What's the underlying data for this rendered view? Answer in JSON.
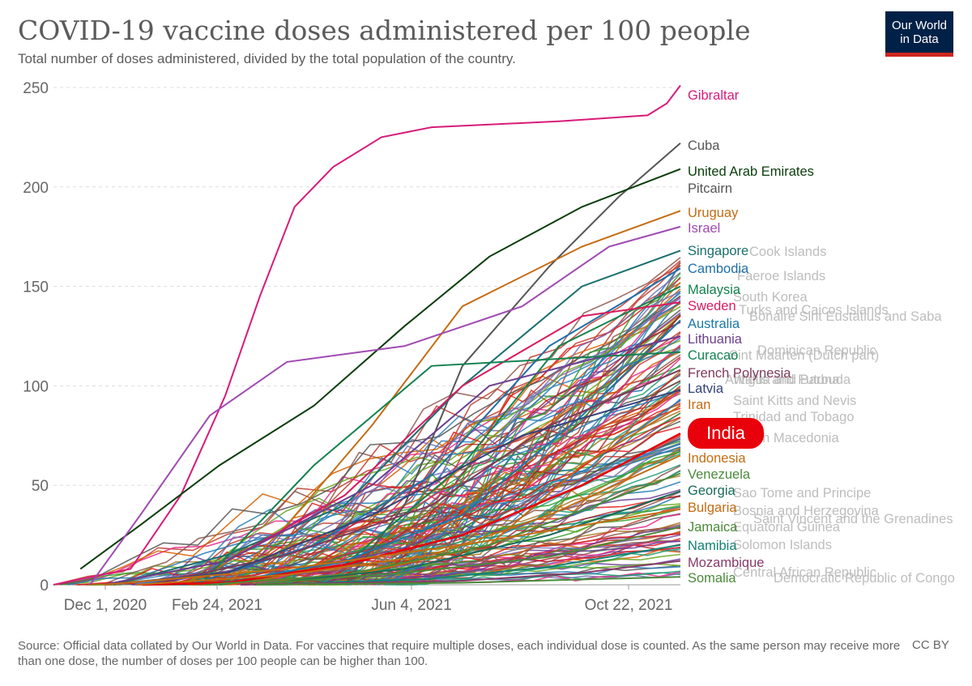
{
  "header": {
    "title": "COVID-19 vaccine doses administered per 100 people",
    "subtitle": "Total number of doses administered, divided by the total population of the country.",
    "logo_line1": "Our World",
    "logo_line2": "in Data"
  },
  "footer": {
    "source": "Source: Official data collated by Our World in Data. For vaccines that require multiple doses, each individual dose is counted. As the same person may receive more than one dose, the number of doses per 100 people can be higher than 100.",
    "license": "CC BY"
  },
  "highlight": {
    "country": "India",
    "color": "#e8000b"
  },
  "chart_data": {
    "type": "line",
    "title": "COVID-19 vaccine doses administered per 100 people",
    "subtitle": "Total number of doses administered, divided by the total population of the country.",
    "xlabel": "",
    "ylabel": "",
    "x_ticks": [
      "Dec 1, 2020",
      "Feb 24, 2021",
      "Jun 4, 2021",
      "Oct 22, 2021"
    ],
    "y_ticks": [
      0,
      50,
      100,
      150,
      200,
      250
    ],
    "ylim": [
      0,
      250
    ],
    "xlim": [
      "2020-12-01",
      "2021-10-22"
    ],
    "grid": "horizontal dashed",
    "legend": "labels at line ends, right",
    "series": [
      {
        "name": "Gibraltar",
        "color": "#d81b7a",
        "points": [
          [
            "2020-12-01",
            0
          ],
          [
            "2021-01-10",
            8
          ],
          [
            "2021-02-05",
            45
          ],
          [
            "2021-02-28",
            95
          ],
          [
            "2021-03-18",
            145
          ],
          [
            "2021-04-05",
            190
          ],
          [
            "2021-04-25",
            210
          ],
          [
            "2021-05-20",
            225
          ],
          [
            "2021-06-15",
            230
          ],
          [
            "2021-08-20",
            233
          ],
          [
            "2021-10-05",
            236
          ],
          [
            "2021-10-15",
            242
          ],
          [
            "2021-10-22",
            251
          ]
        ]
      },
      {
        "name": "Cuba",
        "color": "#555555",
        "points": [
          [
            "2021-05-01",
            0
          ],
          [
            "2021-06-01",
            40
          ],
          [
            "2021-07-01",
            110
          ],
          [
            "2021-08-15",
            160
          ],
          [
            "2021-09-20",
            195
          ],
          [
            "2021-10-22",
            222
          ]
        ]
      },
      {
        "name": "United Arab Emirates",
        "color": "#0a3d0a",
        "points": [
          [
            "2020-12-15",
            8
          ],
          [
            "2021-01-15",
            30
          ],
          [
            "2021-02-25",
            60
          ],
          [
            "2021-04-15",
            90
          ],
          [
            "2021-06-01",
            130
          ],
          [
            "2021-07-15",
            165
          ],
          [
            "2021-09-01",
            190
          ],
          [
            "2021-10-22",
            209
          ]
        ]
      },
      {
        "name": "Pitcairn",
        "color": "#555555",
        "points": []
      },
      {
        "name": "Uruguay",
        "color": "#c46c12",
        "points": [
          [
            "2021-03-01",
            0
          ],
          [
            "2021-04-01",
            30
          ],
          [
            "2021-05-15",
            80
          ],
          [
            "2021-07-01",
            140
          ],
          [
            "2021-09-01",
            170
          ],
          [
            "2021-10-22",
            188
          ]
        ]
      },
      {
        "name": "Israel",
        "color": "#a04ab2",
        "points": [
          [
            "2020-12-20",
            0
          ],
          [
            "2021-01-15",
            35
          ],
          [
            "2021-02-20",
            85
          ],
          [
            "2021-04-01",
            112
          ],
          [
            "2021-06-01",
            120
          ],
          [
            "2021-08-01",
            140
          ],
          [
            "2021-09-15",
            170
          ],
          [
            "2021-10-22",
            180
          ]
        ]
      },
      {
        "name": "Singapore",
        "color": "#1a6e6e",
        "points": [
          [
            "2021-01-01",
            0
          ],
          [
            "2021-03-01",
            15
          ],
          [
            "2021-05-01",
            40
          ],
          [
            "2021-07-01",
            100
          ],
          [
            "2021-09-01",
            150
          ],
          [
            "2021-10-22",
            168
          ]
        ]
      },
      {
        "name": "Cambodia",
        "color": "#1f6fa8",
        "points": [
          [
            "2021-02-10",
            0
          ],
          [
            "2021-04-15",
            20
          ],
          [
            "2021-06-15",
            55
          ],
          [
            "2021-08-15",
            120
          ],
          [
            "2021-10-22",
            159
          ]
        ]
      },
      {
        "name": "Malaysia",
        "color": "#12824f",
        "points": [
          [
            "2021-02-25",
            0
          ],
          [
            "2021-05-01",
            10
          ],
          [
            "2021-07-01",
            60
          ],
          [
            "2021-08-20",
            120
          ],
          [
            "2021-10-22",
            150
          ]
        ]
      },
      {
        "name": "Sweden",
        "color": "#d81b60",
        "points": [
          [
            "2020-12-27",
            0
          ],
          [
            "2021-03-01",
            12
          ],
          [
            "2021-05-01",
            45
          ],
          [
            "2021-07-01",
            100
          ],
          [
            "2021-09-01",
            135
          ],
          [
            "2021-10-22",
            142
          ]
        ]
      },
      {
        "name": "Australia",
        "color": "#1a78a8",
        "points": [
          [
            "2021-02-22",
            0
          ],
          [
            "2021-05-01",
            12
          ],
          [
            "2021-07-01",
            35
          ],
          [
            "2021-09-01",
            85
          ],
          [
            "2021-10-22",
            133
          ]
        ]
      },
      {
        "name": "Lithuania",
        "color": "#6a3f8f",
        "points": [
          [
            "2020-12-27",
            0
          ],
          [
            "2021-03-01",
            12
          ],
          [
            "2021-05-15",
            50
          ],
          [
            "2021-07-15",
            100
          ],
          [
            "2021-10-22",
            125
          ]
        ]
      },
      {
        "name": "Curacao",
        "color": "#128250",
        "points": [
          [
            "2021-02-15",
            0
          ],
          [
            "2021-04-15",
            60
          ],
          [
            "2021-06-15",
            110
          ],
          [
            "2021-10-22",
            117
          ]
        ]
      },
      {
        "name": "French Polynesia",
        "color": "#7d3a5a",
        "points": [
          [
            "2021-01-20",
            0
          ],
          [
            "2021-04-01",
            15
          ],
          [
            "2021-06-15",
            40
          ],
          [
            "2021-08-15",
            80
          ],
          [
            "2021-10-22",
            108
          ]
        ]
      },
      {
        "name": "Latvia",
        "color": "#33437a",
        "points": [
          [
            "2020-12-28",
            0
          ],
          [
            "2021-03-01",
            6
          ],
          [
            "2021-05-15",
            35
          ],
          [
            "2021-08-01",
            75
          ],
          [
            "2021-10-22",
            98
          ]
        ]
      },
      {
        "name": "Iran",
        "color": "#c46c12",
        "points": [
          [
            "2021-02-09",
            0
          ],
          [
            "2021-05-01",
            4
          ],
          [
            "2021-07-15",
            20
          ],
          [
            "2021-09-01",
            60
          ],
          [
            "2021-10-22",
            90
          ]
        ]
      },
      {
        "name": "India",
        "color": "#e8000b",
        "points": [
          [
            "2021-01-16",
            0
          ],
          [
            "2021-03-01",
            1
          ],
          [
            "2021-05-01",
            10
          ],
          [
            "2021-07-01",
            25
          ],
          [
            "2021-09-01",
            50
          ],
          [
            "2021-10-22",
            76
          ]
        ]
      },
      {
        "name": "Indonesia",
        "color": "#c46c12",
        "points": [
          [
            "2021-01-13",
            0
          ],
          [
            "2021-04-01",
            5
          ],
          [
            "2021-06-15",
            15
          ],
          [
            "2021-08-15",
            35
          ],
          [
            "2021-10-22",
            65
          ]
        ]
      },
      {
        "name": "Venezuela",
        "color": "#4a8a3a",
        "points": [
          [
            "2021-02-18",
            0
          ],
          [
            "2021-05-01",
            5
          ],
          [
            "2021-07-15",
            20
          ],
          [
            "2021-10-22",
            56
          ]
        ]
      },
      {
        "name": "Georgia",
        "color": "#1a6a5a",
        "points": [
          [
            "2021-03-15",
            0
          ],
          [
            "2021-06-01",
            8
          ],
          [
            "2021-08-15",
            25
          ],
          [
            "2021-10-22",
            47
          ]
        ]
      },
      {
        "name": "Bulgaria",
        "color": "#c46c12",
        "points": [
          [
            "2020-12-27",
            0
          ],
          [
            "2021-04-01",
            8
          ],
          [
            "2021-07-01",
            20
          ],
          [
            "2021-10-22",
            38
          ]
        ]
      },
      {
        "name": "Jamaica",
        "color": "#4a8a3a",
        "points": [
          [
            "2021-03-10",
            0
          ],
          [
            "2021-06-01",
            6
          ],
          [
            "2021-08-15",
            14
          ],
          [
            "2021-10-22",
            29
          ]
        ]
      },
      {
        "name": "Namibia",
        "color": "#128272",
        "points": [
          [
            "2021-03-19",
            0
          ],
          [
            "2021-06-15",
            3
          ],
          [
            "2021-08-15",
            9
          ],
          [
            "2021-10-22",
            20
          ]
        ]
      },
      {
        "name": "Mozambique",
        "color": "#8a3a6a",
        "points": [
          [
            "2021-03-08",
            0
          ],
          [
            "2021-07-01",
            2
          ],
          [
            "2021-09-01",
            6
          ],
          [
            "2021-10-22",
            12
          ]
        ]
      },
      {
        "name": "Somalia",
        "color": "#4a8a3a",
        "points": [
          [
            "2021-03-16",
            0
          ],
          [
            "2021-07-01",
            1
          ],
          [
            "2021-10-22",
            4
          ]
        ]
      }
    ],
    "overlapping_labels": [
      "Cook Islands",
      "Faeroe Islands",
      "South Korea",
      "Turks and Caicos Islands",
      "Bonaire Sint Eustatius and Saba",
      "Dominican Republic",
      "Sint Maarten (Dutch part)",
      "Wallis and Futuna",
      "Antigua and Barbuda",
      "Saint Kitts and Nevis",
      "Trinidad and Tobago",
      "North Macedonia",
      "Sao Tome and Principe",
      "Bosnia and Herzegovina",
      "Saint Vincent and the Grenadines",
      "Equatorial Guinea",
      "Solomon Islands",
      "Central African Republic",
      "Democratic Republic of Congo"
    ]
  }
}
